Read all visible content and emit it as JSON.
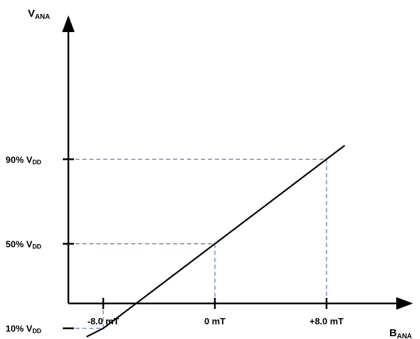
{
  "chart_data": {
    "type": "line",
    "y_axis": {
      "label_main": "V",
      "label_sub": "ANA"
    },
    "x_axis": {
      "label_main": "B",
      "label_sub": "ANA"
    },
    "x_ticks": [
      {
        "value": -8.0,
        "label": "-8.0 mT"
      },
      {
        "value": 0,
        "label": "0 mT"
      },
      {
        "value": 8.0,
        "label": "+8.0 mT"
      }
    ],
    "y_ticks": [
      {
        "value": 10,
        "label_main": "10% V",
        "label_sub": "DD"
      },
      {
        "value": 50,
        "label_main": "50% V",
        "label_sub": "DD"
      },
      {
        "value": 90,
        "label_main": "90% V",
        "label_sub": "DD"
      }
    ],
    "series": [
      {
        "x": [
          -9.2,
          -8.0,
          0,
          8.0,
          9.3
        ],
        "y": [
          6,
          10,
          50,
          90,
          96.5
        ]
      }
    ],
    "guide_points": [
      {
        "x": -8.0,
        "y": 10
      },
      {
        "x": 0,
        "y": 50
      },
      {
        "x": 8.0,
        "y": 90
      }
    ],
    "colors": {
      "line": "#000000",
      "guides": "#4472c4",
      "axes": "#000000"
    }
  }
}
